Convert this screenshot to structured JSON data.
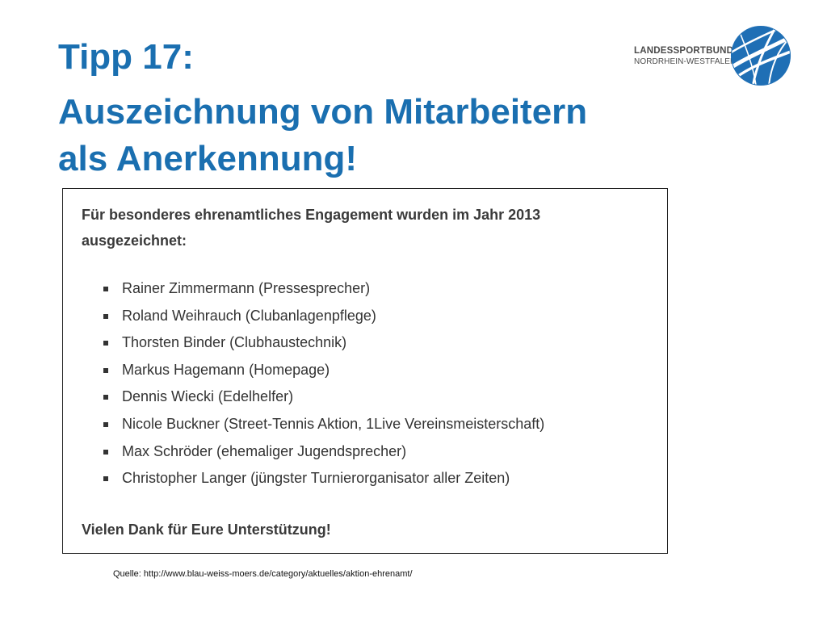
{
  "slide": {
    "title_line1": "Tipp 17:",
    "title_line2": "Auszeichnung von Mitarbeitern",
    "title_line3": "als Anerkennung!"
  },
  "logo": {
    "line1": "LANDESSPORTBUND",
    "line2": "NORDRHEIN-WESTFALEN",
    "icon": "globe-sport-logo-icon"
  },
  "card": {
    "intro_line1": "Für besonderes ehrenamtliches Engagement wurden im Jahr 2013",
    "intro_line2": "ausgezeichnet:",
    "honorees": [
      "Rainer Zimmermann (Pressesprecher)",
      "Roland Weihrauch (Clubanlagenpflege)",
      "Thorsten Binder (Clubhaustechnik)",
      "Markus Hagemann (Homepage)",
      "Dennis Wiecki (Edelhelfer)",
      "Nicole Buckner (Street-Tennis Aktion, 1Live Vereinsmeisterschaft)",
      "Max Schröder (ehemaliger Jugendsprecher)",
      "Christopher Langer (jüngster Turnierorganisator aller Zeiten)"
    ],
    "thanks": "Vielen Dank für Eure Unterstützung!"
  },
  "source": "Quelle: http://www.blau-weiss-moers.de/category/aktuelles/aktion-ehrenamt/",
  "colors": {
    "title": "#1a6fb0",
    "logo_blue": "#1f6fb5"
  }
}
